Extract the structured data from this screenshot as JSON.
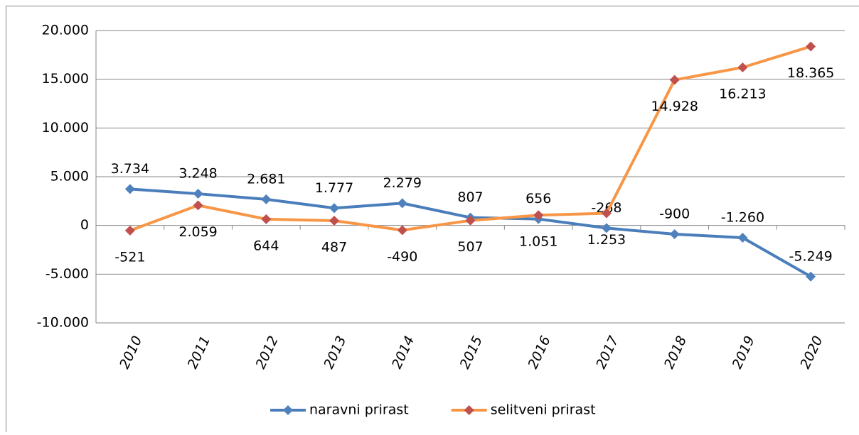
{
  "chart_data": {
    "type": "line",
    "categories": [
      "2010",
      "2011",
      "2012",
      "2013",
      "2014",
      "2015",
      "2016",
      "2017",
      "2018",
      "2019",
      "2020"
    ],
    "series": [
      {
        "name": "naravni prirast",
        "color": "#4a7ebb",
        "marker_color": "#4f81bd",
        "values": [
          3734,
          3248,
          2681,
          1777,
          2279,
          807,
          656,
          -268,
          -900,
          -1260,
          -5249
        ],
        "value_labels": [
          "3.734",
          "3.248",
          "2.681",
          "1.777",
          "2.279",
          "807",
          "656",
          "-268",
          "-900",
          "-1.260",
          "-5.249"
        ]
      },
      {
        "name": "selitveni prirast",
        "color": "#f79646",
        "marker_color": "#c0504d",
        "values": [
          -521,
          2059,
          644,
          487,
          -490,
          507,
          1051,
          1253,
          14928,
          16213,
          18365
        ],
        "value_labels": [
          "-521",
          "2.059",
          "644",
          "487",
          "-490",
          "507",
          "1.051",
          "1.253",
          "14.928",
          "16.213",
          "18.365"
        ]
      }
    ],
    "ylim": [
      -10000,
      20000
    ],
    "yticks": [
      {
        "value": -10000,
        "label": "-10.000"
      },
      {
        "value": -5000,
        "label": "-5.000"
      },
      0,
      {
        "value": 5000,
        "label": "5.000"
      },
      {
        "value": 10000,
        "label": "10.000"
      },
      {
        "value": 15000,
        "label": "15.000"
      },
      {
        "value": 20000,
        "label": "20.000"
      }
    ],
    "grid": true,
    "legend": "bottom"
  }
}
